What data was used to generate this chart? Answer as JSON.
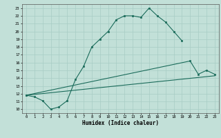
{
  "xlabel": "Humidex (Indice chaleur)",
  "bg_color": "#c2e0d8",
  "line_color": "#1a6b5a",
  "grid_color": "#a8ccc4",
  "xlim": [
    -0.5,
    23.5
  ],
  "ylim": [
    9.5,
    23.5
  ],
  "yticks": [
    10,
    11,
    12,
    13,
    14,
    15,
    16,
    17,
    18,
    19,
    20,
    21,
    22,
    23
  ],
  "xticks": [
    0,
    1,
    2,
    3,
    4,
    5,
    6,
    7,
    8,
    9,
    10,
    11,
    12,
    13,
    14,
    15,
    16,
    17,
    18,
    19,
    20,
    21,
    22,
    23
  ],
  "line1_x": [
    0,
    1,
    2,
    3,
    4,
    5,
    6,
    7,
    8,
    9,
    10,
    11,
    12,
    13,
    14,
    15,
    16,
    17,
    18,
    19
  ],
  "line1_y": [
    11.8,
    11.6,
    11.1,
    10.0,
    10.3,
    11.1,
    13.8,
    15.5,
    18.0,
    19.0,
    20.0,
    21.5,
    22.0,
    22.0,
    21.8,
    23.0,
    22.0,
    21.2,
    20.0,
    18.8
  ],
  "line2_x": [
    0,
    20,
    21,
    22,
    23
  ],
  "line2_y": [
    11.8,
    16.2,
    14.5,
    15.0,
    14.5
  ],
  "line3_x": [
    0,
    23
  ],
  "line3_y": [
    11.8,
    14.3
  ]
}
